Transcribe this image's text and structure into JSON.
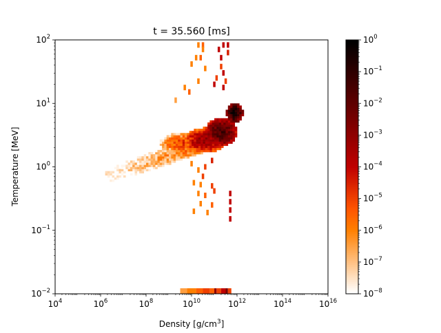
{
  "chart_data": {
    "type": "heatmap",
    "title": "t = 35.560 [ms]",
    "xlabel": "Density [g/cm",
    "xlabel_sup": "3",
    "xlabel_end": "]",
    "ylabel": "Temperature [MeV]",
    "xscale": "log",
    "yscale": "log",
    "xlim": [
      10000.0,
      1e+16
    ],
    "ylim": [
      0.01,
      100
    ],
    "x_ticks": [
      {
        "base": "10",
        "exp": "4",
        "value": 4
      },
      {
        "base": "10",
        "exp": "6",
        "value": 6
      },
      {
        "base": "10",
        "exp": "8",
        "value": 8
      },
      {
        "base": "10",
        "exp": "10",
        "value": 10
      },
      {
        "base": "10",
        "exp": "12",
        "value": 12
      },
      {
        "base": "10",
        "exp": "14",
        "value": 14
      },
      {
        "base": "10",
        "exp": "16",
        "value": 16
      }
    ],
    "y_ticks": [
      {
        "base": "10",
        "exp": "−2",
        "value": -2
      },
      {
        "base": "10",
        "exp": "−1",
        "value": -1
      },
      {
        "base": "10",
        "exp": "0",
        "value": 0
      },
      {
        "base": "10",
        "exp": "1",
        "value": 1
      },
      {
        "base": "10",
        "exp": "2",
        "value": 2
      }
    ],
    "colorbar": {
      "scale": "log",
      "range": [
        1e-08,
        1
      ],
      "colormap": "gist_heat_r",
      "ticks": [
        {
          "base": "10",
          "exp": "−8",
          "value": -8
        },
        {
          "base": "10",
          "exp": "−7",
          "value": -7
        },
        {
          "base": "10",
          "exp": "−6",
          "value": -6
        },
        {
          "base": "10",
          "exp": "−5",
          "value": -5
        },
        {
          "base": "10",
          "exp": "−4",
          "value": -4
        },
        {
          "base": "10",
          "exp": "−3",
          "value": -3
        },
        {
          "base": "10",
          "exp": "−2",
          "value": -2
        },
        {
          "base": "10",
          "exp": "−1",
          "value": -1
        },
        {
          "base": "10",
          "exp": "0",
          "value": 0
        }
      ]
    },
    "blobs": [
      {
        "x": 11.3,
        "y": 0.55,
        "sx": 0.65,
        "sy": 0.2,
        "peak": -1.6
      },
      {
        "x": 11.9,
        "y": 0.85,
        "sx": 0.35,
        "sy": 0.14,
        "peak": -0.6
      },
      {
        "x": 10.6,
        "y": 0.42,
        "sx": 0.85,
        "sy": 0.18,
        "peak": -3.2
      },
      {
        "x": 9.6,
        "y": 0.37,
        "sx": 0.9,
        "sy": 0.16,
        "peak": -5.0
      }
    ],
    "band": {
      "x_start": 6.2,
      "x_end": 11.0,
      "y_start": -0.15,
      "y_end": 0.42,
      "width": 0.14,
      "peak_start": -8.0,
      "peak_end": -5.2
    },
    "scatter": [
      {
        "x": 10.3,
        "y": 1.92,
        "v": -6
      },
      {
        "x": 10.5,
        "y": 1.92,
        "v": -5.5
      },
      {
        "x": 11.4,
        "y": 1.92,
        "v": -4
      },
      {
        "x": 11.6,
        "y": 1.92,
        "v": -4
      },
      {
        "x": 10.5,
        "y": 1.85,
        "v": -6
      },
      {
        "x": 11.2,
        "y": 1.85,
        "v": -4
      },
      {
        "x": 11.6,
        "y": 1.8,
        "v": -4.5
      },
      {
        "x": 10.2,
        "y": 1.72,
        "v": -6
      },
      {
        "x": 10.4,
        "y": 1.72,
        "v": -5.5
      },
      {
        "x": 11.3,
        "y": 1.72,
        "v": -4
      },
      {
        "x": 10.0,
        "y": 1.62,
        "v": -6
      },
      {
        "x": 10.6,
        "y": 1.55,
        "v": -6
      },
      {
        "x": 11.3,
        "y": 1.58,
        "v": -5
      },
      {
        "x": 11.4,
        "y": 1.48,
        "v": -4
      },
      {
        "x": 11.1,
        "y": 1.4,
        "v": -5
      },
      {
        "x": 10.3,
        "y": 1.35,
        "v": -6
      },
      {
        "x": 11.0,
        "y": 1.3,
        "v": -4
      },
      {
        "x": 11.5,
        "y": 1.35,
        "v": -5
      },
      {
        "x": 9.7,
        "y": 1.25,
        "v": -6
      },
      {
        "x": 9.9,
        "y": 1.18,
        "v": -5.5
      },
      {
        "x": 11.4,
        "y": 1.25,
        "v": -4
      },
      {
        "x": 9.3,
        "y": 1.05,
        "v": -6.5
      },
      {
        "x": 10.0,
        "y": 0.05,
        "v": -6
      },
      {
        "x": 10.3,
        "y": -0.05,
        "v": -6
      },
      {
        "x": 10.6,
        "y": 0.0,
        "v": -5
      },
      {
        "x": 10.9,
        "y": 0.1,
        "v": -4.5
      },
      {
        "x": 10.5,
        "y": -0.15,
        "v": -5
      },
      {
        "x": 10.1,
        "y": -0.25,
        "v": -6
      },
      {
        "x": 10.4,
        "y": -0.28,
        "v": -6
      },
      {
        "x": 10.9,
        "y": -0.3,
        "v": -5
      },
      {
        "x": 10.3,
        "y": -0.42,
        "v": -6
      },
      {
        "x": 10.6,
        "y": -0.45,
        "v": -5.5
      },
      {
        "x": 11.0,
        "y": -0.38,
        "v": -5
      },
      {
        "x": 11.7,
        "y": -0.42,
        "v": -4
      },
      {
        "x": 10.4,
        "y": -0.58,
        "v": -6
      },
      {
        "x": 10.9,
        "y": -0.6,
        "v": -5.5
      },
      {
        "x": 11.7,
        "y": -0.55,
        "v": -4
      },
      {
        "x": 10.1,
        "y": -0.7,
        "v": -6
      },
      {
        "x": 10.7,
        "y": -0.72,
        "v": -6
      },
      {
        "x": 11.7,
        "y": -0.68,
        "v": -4
      },
      {
        "x": 11.7,
        "y": -0.82,
        "v": -4
      }
    ],
    "strip": [
      {
        "x0": 9.5,
        "x1": 9.8,
        "v": -6.5
      },
      {
        "x0": 9.8,
        "x1": 10.2,
        "v": -6
      },
      {
        "x0": 10.2,
        "x1": 10.5,
        "v": -5.5
      },
      {
        "x0": 10.5,
        "x1": 10.8,
        "v": -5
      },
      {
        "x0": 10.8,
        "x1": 11.0,
        "v": -5.5
      },
      {
        "x0": 11.0,
        "x1": 11.1,
        "v": -3
      },
      {
        "x0": 11.1,
        "x1": 11.3,
        "v": -5
      },
      {
        "x0": 11.3,
        "x1": 11.5,
        "v": -4
      },
      {
        "x0": 11.5,
        "x1": 11.6,
        "v": -2.5
      },
      {
        "x0": 11.6,
        "x1": 11.75,
        "v": -5
      }
    ]
  }
}
